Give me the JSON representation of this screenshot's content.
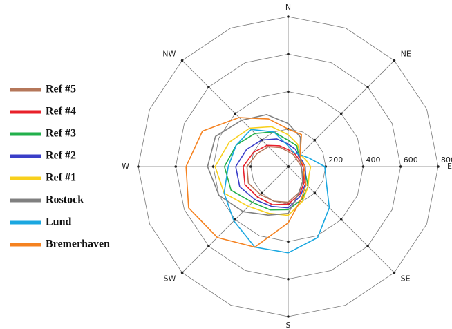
{
  "chart_data": {
    "type": "radar",
    "categories": [
      "N",
      null,
      "NE",
      null,
      "E",
      null,
      "SE",
      null,
      "S",
      null,
      "SW",
      null,
      "W",
      null,
      "NW",
      null
    ],
    "rlim": [
      0,
      800
    ],
    "rticks": [
      200,
      400,
      600,
      800
    ],
    "grid": true,
    "legend": "left",
    "series": [
      {
        "name": "Ref #5",
        "color": "#b5775a",
        "values": [
          80,
          70,
          60,
          60,
          70,
          80,
          110,
          150,
          190,
          200,
          210,
          230,
          220,
          180,
          150,
          110
        ]
      },
      {
        "name": "Ref #4",
        "color": "#e8202a",
        "values": [
          90,
          80,
          70,
          70,
          80,
          90,
          120,
          160,
          200,
          220,
          230,
          250,
          240,
          200,
          160,
          120
        ]
      },
      {
        "name": "Ref #3",
        "color": "#22b04b",
        "values": [
          140,
          120,
          80,
          80,
          90,
          100,
          150,
          190,
          230,
          250,
          270,
          330,
          340,
          300,
          250,
          200
        ]
      },
      {
        "name": "Ref #2",
        "color": "#3a3ec8",
        "values": [
          120,
          100,
          80,
          80,
          90,
          100,
          130,
          170,
          220,
          230,
          250,
          280,
          280,
          240,
          200,
          160
        ]
      },
      {
        "name": "Ref #1",
        "color": "#f8d01c",
        "values": [
          170,
          130,
          90,
          100,
          120,
          120,
          150,
          200,
          260,
          270,
          300,
          370,
          390,
          340,
          290,
          230
        ]
      },
      {
        "name": "Rostock",
        "color": "#808080",
        "values": [
          230,
          170,
          90,
          70,
          70,
          80,
          110,
          150,
          250,
          280,
          340,
          400,
          430,
          420,
          350,
          300
        ]
      },
      {
        "name": "Lund",
        "color": "#1aa7e0",
        "values": [
          110,
          80,
          90,
          120,
          195,
          220,
          310,
          410,
          460,
          465,
          410,
          370,
          320,
          300,
          280,
          200
        ]
      },
      {
        "name": "Bremerhaven",
        "color": "#f58220",
        "values": [
          200,
          185,
          90,
          75,
          90,
          90,
          135,
          185,
          300,
          465,
          535,
          575,
          545,
          495,
          370,
          275
        ]
      }
    ]
  }
}
